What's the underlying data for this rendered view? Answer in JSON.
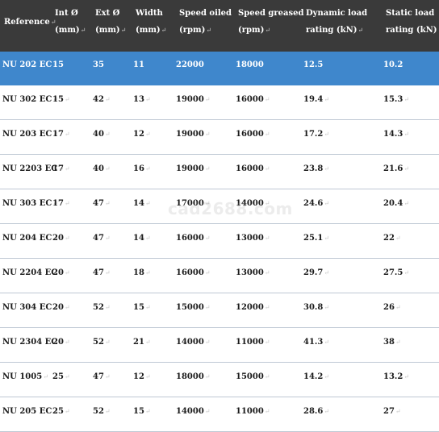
{
  "header": {
    "columns": [
      {
        "line1": "Reference",
        "line2": ""
      },
      {
        "line1": "Int Ø",
        "line2": "(mm)"
      },
      {
        "line1": "Ext Ø",
        "line2": "(mm)"
      },
      {
        "line1": "Width",
        "line2": "(mm)"
      },
      {
        "line1": "Speed oiled",
        "line2": "(rpm)"
      },
      {
        "line1": "Speed greased",
        "line2": "(rpm)"
      },
      {
        "line1": "Dynamic load",
        "line2": "rating (kN)"
      },
      {
        "line1": "Static load",
        "line2": "rating (kN)"
      }
    ],
    "paragraph_mark": "↵"
  },
  "rows": [
    {
      "ref": "NU 202 EC",
      "int": "15",
      "ext": "35",
      "width": "11",
      "oiled": "22000",
      "greased": "18000",
      "dynamic": "12.5",
      "static": "10.2",
      "selected": true
    },
    {
      "ref": "NU 302 EC",
      "int": "15",
      "ext": "42",
      "width": "13",
      "oiled": "19000",
      "greased": "16000",
      "dynamic": "19.4",
      "static": "15.3",
      "selected": false
    },
    {
      "ref": "NU 203 EC",
      "int": "17",
      "ext": "40",
      "width": "12",
      "oiled": "19000",
      "greased": "16000",
      "dynamic": "17.2",
      "static": "14.3",
      "selected": false
    },
    {
      "ref": "NU 2203 EC",
      "int": "17",
      "ext": "40",
      "width": "16",
      "oiled": "19000",
      "greased": "16000",
      "dynamic": "23.8",
      "static": "21.6",
      "selected": false
    },
    {
      "ref": "NU 303 EC",
      "int": "17",
      "ext": "47",
      "width": "14",
      "oiled": "17000",
      "greased": "14000",
      "dynamic": "24.6",
      "static": "20.4",
      "selected": false
    },
    {
      "ref": "NU 204 EC",
      "int": "20",
      "ext": "47",
      "width": "14",
      "oiled": "16000",
      "greased": "13000",
      "dynamic": "25.1",
      "static": "22",
      "selected": false
    },
    {
      "ref": "NU 2204 EC",
      "int": "20",
      "ext": "47",
      "width": "18",
      "oiled": "16000",
      "greased": "13000",
      "dynamic": "29.7",
      "static": "27.5",
      "selected": false
    },
    {
      "ref": "NU 304 EC",
      "int": "20",
      "ext": "52",
      "width": "15",
      "oiled": "15000",
      "greased": "12000",
      "dynamic": "30.8",
      "static": "26",
      "selected": false
    },
    {
      "ref": "NU 2304 EC",
      "int": "20",
      "ext": "52",
      "width": "21",
      "oiled": "14000",
      "greased": "11000",
      "dynamic": "41.3",
      "static": "38",
      "selected": false
    },
    {
      "ref": "NU 1005",
      "int": "25",
      "ext": "47",
      "width": "12",
      "oiled": "18000",
      "greased": "15000",
      "dynamic": "14.2",
      "static": "13.2",
      "selected": false
    },
    {
      "ref": "NU 205 EC",
      "int": "25",
      "ext": "52",
      "width": "15",
      "oiled": "14000",
      "greased": "11000",
      "dynamic": "28.6",
      "static": "27",
      "selected": false
    }
  ],
  "watermark": "cad2688.com"
}
